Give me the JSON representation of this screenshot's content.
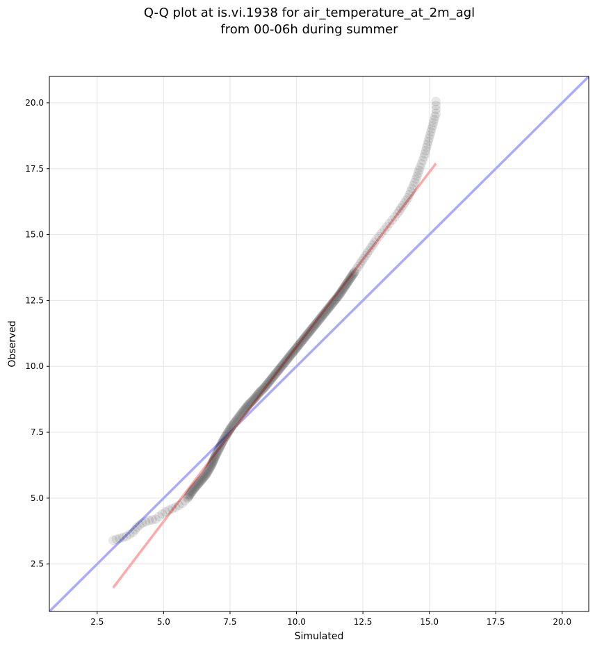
{
  "chart_data": {
    "type": "scatter",
    "title_line1": "Q-Q plot at is.vi.1938 for air_temperature_at_2m_agl",
    "title_line2": "from 00-06h during summer",
    "xlabel": "Simulated",
    "ylabel": "Observed",
    "xlim": [
      0.7,
      21.0
    ],
    "ylim": [
      0.7,
      21.0
    ],
    "xticks": [
      "2.5",
      "5.0",
      "7.5",
      "10.0",
      "12.5",
      "15.0",
      "17.5",
      "20.0"
    ],
    "yticks": [
      "2.5",
      "5.0",
      "7.5",
      "10.0",
      "12.5",
      "15.0",
      "17.5",
      "20.0"
    ],
    "grid": true,
    "identity_line": {
      "x": [
        0.7,
        21.0
      ],
      "y": [
        0.7,
        21.0
      ],
      "color": "#aaaaff"
    },
    "fit_line": {
      "x": [
        3.1,
        15.25
      ],
      "y": [
        1.6,
        17.7
      ],
      "color": "#ffaaaa"
    },
    "marker_color": "#000000",
    "quantiles": {
      "x": [
        3.1,
        3.6,
        3.85,
        4.0,
        4.2,
        4.45,
        4.7,
        4.95,
        5.2,
        5.45,
        5.7,
        5.9,
        6.1,
        6.35,
        6.6,
        6.8,
        6.95,
        7.1,
        7.25,
        7.4,
        7.55,
        7.7,
        7.85,
        8.0,
        8.2,
        8.4,
        8.6,
        8.8,
        9.0,
        9.2,
        9.4,
        9.6,
        9.8,
        10.0,
        10.2,
        10.4,
        10.6,
        10.8,
        11.0,
        11.2,
        11.4,
        11.6,
        11.8,
        12.0,
        12.2,
        12.4,
        12.6,
        12.8,
        13.0,
        13.2,
        13.4,
        13.6,
        13.8,
        14.0,
        14.2,
        14.35,
        14.5,
        14.65,
        14.8,
        15.25,
        15.25
      ],
      "y": [
        3.4,
        3.55,
        3.7,
        3.9,
        4.05,
        4.15,
        4.2,
        4.4,
        4.55,
        4.65,
        4.8,
        5.0,
        5.3,
        5.6,
        5.9,
        6.25,
        6.6,
        6.9,
        7.2,
        7.45,
        7.7,
        7.9,
        8.1,
        8.3,
        8.55,
        8.75,
        9.0,
        9.2,
        9.45,
        9.7,
        9.95,
        10.2,
        10.45,
        10.7,
        10.95,
        11.2,
        11.45,
        11.7,
        11.95,
        12.2,
        12.45,
        12.7,
        13.0,
        13.3,
        13.6,
        13.9,
        14.2,
        14.5,
        14.8,
        15.05,
        15.3,
        15.55,
        15.8,
        16.1,
        16.4,
        16.75,
        17.1,
        17.55,
        17.95,
        19.6,
        20.05
      ]
    }
  }
}
